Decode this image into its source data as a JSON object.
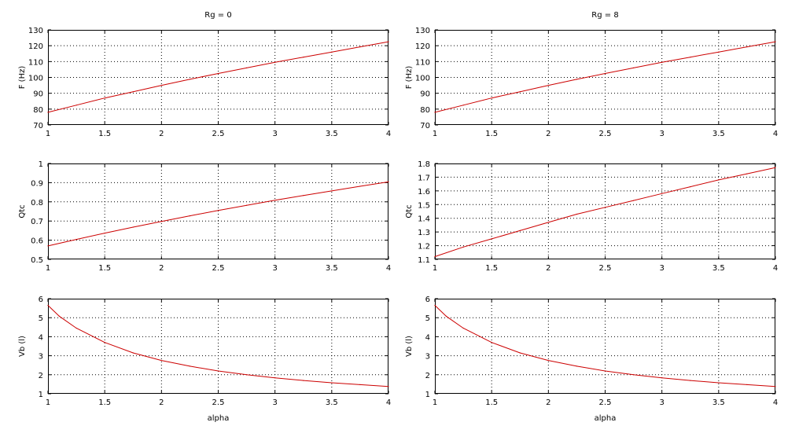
{
  "figure": {
    "colors": {
      "line": "#cc0000",
      "axes": "#000000",
      "grid": "#000000",
      "background": "#ffffff"
    }
  },
  "chart_data": [
    {
      "type": "line",
      "panel": "left-top",
      "title": "Rg = 0",
      "xlabel": "",
      "ylabel": "F (Hz)",
      "xlim": [
        1,
        4
      ],
      "ylim": [
        70,
        130
      ],
      "grid": true,
      "x_ticks": [
        "1",
        "1.5",
        "2",
        "2.5",
        "3",
        "3.5",
        "4"
      ],
      "y_ticks": [
        "70",
        "80",
        "90",
        "100",
        "110",
        "120",
        "130"
      ],
      "series": [
        {
          "x": [
            1,
            1.25,
            1.5,
            1.75,
            2,
            2.25,
            2.5,
            2.75,
            3,
            3.25,
            3.5,
            3.75,
            4
          ],
          "y": [
            78,
            82.5,
            87,
            91,
            95,
            98.8,
            102.5,
            106,
            109.5,
            112.8,
            116,
            119.3,
            122.5
          ]
        }
      ]
    },
    {
      "type": "line",
      "panel": "left-middle",
      "title": "",
      "xlabel": "",
      "ylabel": "Qtc",
      "xlim": [
        1,
        4
      ],
      "ylim": [
        0.5,
        1
      ],
      "grid": true,
      "x_ticks": [
        "1",
        "1.5",
        "2",
        "2.5",
        "3",
        "3.5",
        "4"
      ],
      "y_ticks": [
        "0.5",
        "0.6",
        "0.7",
        "0.8",
        "0.9",
        "1"
      ],
      "series": [
        {
          "x": [
            1,
            1.25,
            1.5,
            1.75,
            2,
            2.25,
            2.5,
            2.75,
            3,
            3.25,
            3.5,
            3.75,
            4
          ],
          "y": [
            0.57,
            0.604,
            0.637,
            0.668,
            0.698,
            0.727,
            0.755,
            0.782,
            0.808,
            0.833,
            0.857,
            0.881,
            0.904
          ]
        }
      ]
    },
    {
      "type": "line",
      "panel": "left-bottom",
      "title": "",
      "xlabel": "alpha",
      "ylabel": "Vb (l)",
      "xlim": [
        1,
        4
      ],
      "ylim": [
        1,
        6
      ],
      "grid": true,
      "x_ticks": [
        "1",
        "1.5",
        "2",
        "2.5",
        "3",
        "3.5",
        "4"
      ],
      "y_ticks": [
        "1",
        "2",
        "3",
        "4",
        "5",
        "6"
      ],
      "series": [
        {
          "x": [
            1,
            1.1,
            1.25,
            1.5,
            1.75,
            2,
            2.25,
            2.5,
            2.75,
            3,
            3.25,
            3.5,
            3.75,
            4
          ],
          "y": [
            5.65,
            5.08,
            4.45,
            3.7,
            3.15,
            2.75,
            2.45,
            2.2,
            2,
            1.84,
            1.7,
            1.58,
            1.48,
            1.38
          ]
        }
      ]
    },
    {
      "type": "line",
      "panel": "right-top",
      "title": "Rg = 8",
      "xlabel": "",
      "ylabel": "F (Hz)",
      "xlim": [
        1,
        4
      ],
      "ylim": [
        70,
        130
      ],
      "grid": true,
      "x_ticks": [
        "1",
        "1.5",
        "2",
        "2.5",
        "3",
        "3.5",
        "4"
      ],
      "y_ticks": [
        "70",
        "80",
        "90",
        "100",
        "110",
        "120",
        "130"
      ],
      "series": [
        {
          "x": [
            1,
            1.25,
            1.5,
            1.75,
            2,
            2.25,
            2.5,
            2.75,
            3,
            3.25,
            3.5,
            3.75,
            4
          ],
          "y": [
            78,
            82.5,
            87,
            91,
            95,
            98.8,
            102.5,
            106,
            109.5,
            112.8,
            116,
            119.3,
            122.5
          ]
        }
      ]
    },
    {
      "type": "line",
      "panel": "right-middle",
      "title": "",
      "xlabel": "",
      "ylabel": "Qtc",
      "xlim": [
        1,
        4
      ],
      "ylim": [
        1.1,
        1.8
      ],
      "grid": true,
      "x_ticks": [
        "1",
        "1.5",
        "2",
        "2.5",
        "3",
        "3.5",
        "4"
      ],
      "y_ticks": [
        "1.1",
        "1.2",
        "1.3",
        "1.4",
        "1.5",
        "1.6",
        "1.7",
        "1.8"
      ],
      "series": [
        {
          "x": [
            1,
            1.25,
            1.5,
            1.75,
            2,
            2.25,
            2.5,
            2.75,
            3,
            3.25,
            3.5,
            3.75,
            4
          ],
          "y": [
            1.12,
            1.19,
            1.25,
            1.31,
            1.37,
            1.43,
            1.48,
            1.53,
            1.58,
            1.63,
            1.68,
            1.725,
            1.77
          ]
        }
      ]
    },
    {
      "type": "line",
      "panel": "right-bottom",
      "title": "",
      "xlabel": "alpha",
      "ylabel": "Vb (l)",
      "xlim": [
        1,
        4
      ],
      "ylim": [
        1,
        6
      ],
      "grid": true,
      "x_ticks": [
        "1",
        "1.5",
        "2",
        "2.5",
        "3",
        "3.5",
        "4"
      ],
      "y_ticks": [
        "1",
        "2",
        "3",
        "4",
        "5",
        "6"
      ],
      "series": [
        {
          "x": [
            1,
            1.1,
            1.25,
            1.5,
            1.75,
            2,
            2.25,
            2.5,
            2.75,
            3,
            3.25,
            3.5,
            3.75,
            4
          ],
          "y": [
            5.65,
            5.08,
            4.45,
            3.7,
            3.15,
            2.75,
            2.45,
            2.2,
            2,
            1.84,
            1.7,
            1.58,
            1.48,
            1.38
          ]
        }
      ]
    }
  ]
}
